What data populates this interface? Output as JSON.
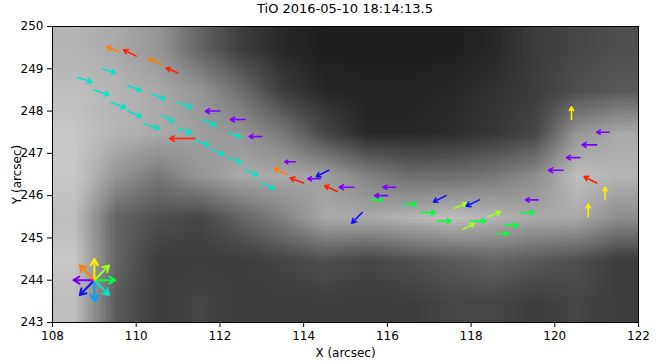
{
  "chart_data": {
    "type": "vector",
    "title": "TiO 2016-05-10 18:14:13.5",
    "x_label": "X (arcsec)",
    "y_label": "Y (arcsec)",
    "xlim": [
      108,
      122
    ],
    "ylim": [
      243,
      250
    ],
    "xticks": [
      108,
      110,
      112,
      114,
      116,
      118,
      120,
      122
    ],
    "yticks": [
      243,
      244,
      245,
      246,
      247,
      248,
      249,
      250
    ],
    "intensity": [
      [
        180,
        170,
        150,
        100,
        60,
        40,
        30,
        30,
        30,
        30,
        40,
        60,
        70,
        80
      ],
      [
        190,
        180,
        170,
        150,
        110,
        60,
        40,
        35,
        35,
        40,
        50,
        60,
        80,
        90
      ],
      [
        200,
        180,
        170,
        160,
        150,
        120,
        70,
        40,
        40,
        45,
        55,
        70,
        150,
        170
      ],
      [
        200,
        150,
        120,
        150,
        170,
        170,
        160,
        130,
        110,
        110,
        120,
        140,
        190,
        180
      ],
      [
        190,
        100,
        80,
        70,
        100,
        130,
        170,
        170,
        180,
        190,
        180,
        170,
        170,
        140
      ],
      [
        200,
        100,
        60,
        60,
        60,
        70,
        80,
        70,
        80,
        90,
        100,
        90,
        80,
        60
      ],
      [
        190,
        90,
        60,
        70,
        60,
        60,
        60,
        60,
        60,
        70,
        70,
        60,
        70,
        60
      ]
    ],
    "vectors": {
      "x": [
        108.6,
        109.0,
        109.4,
        109.8,
        110.2,
        110.6,
        111.0,
        111.4,
        111.8,
        112.2,
        112.6,
        113.0,
        109.2,
        109.8,
        110.4,
        111.0,
        111.6,
        112.2,
        110.0,
        110.6,
        111.0,
        109.6,
        112.0,
        112.6,
        113.0,
        111.4,
        113.6,
        114.0,
        114.4,
        114.8,
        115.2,
        115.6,
        116.0,
        116.4,
        116.8,
        117.2,
        117.6,
        118.0,
        118.4,
        118.8,
        117.4,
        118.2,
        115.4,
        116.2,
        119.2,
        119.6,
        120.2,
        120.6,
        121.0,
        121.3,
        120.4,
        121.0,
        120.8,
        121.2,
        118.6,
        117.8,
        114.6,
        113.8
      ],
      "y": [
        248.8,
        248.5,
        248.2,
        248.0,
        247.7,
        247.9,
        247.6,
        247.3,
        247.1,
        246.9,
        246.6,
        246.3,
        249.0,
        248.6,
        248.4,
        248.2,
        247.8,
        247.5,
        249.3,
        249.1,
        248.9,
        249.4,
        248.0,
        247.8,
        247.4,
        247.35,
        246.5,
        246.3,
        246.4,
        246.1,
        246.2,
        245.9,
        246.0,
        245.8,
        245.6,
        245.4,
        245.7,
        245.4,
        245.5,
        245.3,
        246.0,
        245.9,
        245.6,
        246.2,
        245.6,
        245.9,
        246.6,
        246.9,
        247.2,
        247.5,
        247.8,
        246.3,
        245.5,
        245.9,
        245.1,
        245.2,
        246.6,
        246.8
      ],
      "u": [
        0.35,
        0.35,
        0.35,
        0.32,
        0.35,
        0.3,
        0.33,
        0.35,
        0.3,
        0.32,
        0.3,
        0.3,
        0.3,
        0.32,
        0.3,
        0.33,
        0.3,
        0.3,
        -0.3,
        -0.3,
        -0.28,
        -0.3,
        -0.35,
        -0.35,
        -0.3,
        -0.6,
        -0.3,
        -0.32,
        -0.3,
        -0.3,
        -0.35,
        0.3,
        -0.3,
        0.3,
        0.35,
        0.32,
        0.3,
        0.35,
        0.3,
        0.32,
        -0.3,
        -0.32,
        -0.25,
        -0.3,
        0.3,
        -0.3,
        -0.35,
        -0.32,
        -0.35,
        -0.3,
        0.0,
        -0.3,
        0.0,
        0.0,
        0.3,
        0.28,
        -0.3,
        -0.25
      ],
      "v": [
        -0.12,
        -0.12,
        -0.12,
        -0.14,
        -0.12,
        -0.15,
        -0.12,
        -0.1,
        -0.14,
        -0.12,
        -0.12,
        -0.14,
        -0.1,
        -0.12,
        -0.12,
        -0.12,
        -0.14,
        -0.12,
        0.15,
        0.15,
        0.12,
        0.12,
        0.0,
        0.0,
        0.0,
        0.0,
        0.15,
        0.12,
        0.0,
        0.14,
        0.0,
        0.0,
        0.0,
        0.0,
        0.0,
        0.0,
        0.12,
        0.0,
        0.12,
        0.0,
        -0.15,
        -0.15,
        -0.25,
        0.0,
        0.0,
        0.0,
        0.0,
        0.0,
        0.0,
        0.0,
        0.3,
        0.15,
        0.3,
        0.3,
        0.0,
        0.14,
        -0.15,
        0.0
      ],
      "colors": [
        "#00e5c8",
        "#00e5c8",
        "#00e5c8",
        "#00e5c8",
        "#00e5c8",
        "#00e5c8",
        "#00e5c8",
        "#00e5c8",
        "#00e5c8",
        "#00e5c8",
        "#00e5c8",
        "#00e5c8",
        "#00e5c8",
        "#00e5c8",
        "#00e5c8",
        "#00e5c8",
        "#00e5c8",
        "#00e5c8",
        "#ff2000",
        "#ff8000",
        "#ff2000",
        "#ff8000",
        "#7a00ff",
        "#7a00ff",
        "#7a00ff",
        "#ff2000",
        "#ff8000",
        "#ff2000",
        "#7a00ff",
        "#ff2000",
        "#7a00ff",
        "#00ff40",
        "#7a00ff",
        "#00ff40",
        "#00ff40",
        "#00ff40",
        "#a0ff20",
        "#00ff40",
        "#a0ff20",
        "#00ff40",
        "#1010ff",
        "#1010ff",
        "#1010ff",
        "#7a00ff",
        "#00ff40",
        "#7a00ff",
        "#7a00ff",
        "#7a00ff",
        "#7a00ff",
        "#7a00ff",
        "#ffee00",
        "#ff2000",
        "#ffee00",
        "#ffee00",
        "#00ff40",
        "#a0ff20",
        "#1010ff",
        "#7a00ff"
      ]
    },
    "key": {
      "x": 109,
      "y": 244,
      "u": [
        -0.5,
        -0.35,
        0.0,
        0.35,
        0.5,
        0.35,
        0.0,
        -0.35
      ],
      "v": [
        0.0,
        -0.35,
        -0.5,
        -0.35,
        0.0,
        0.35,
        0.5,
        0.35
      ],
      "colors": [
        "#7a00ff",
        "#1010ff",
        "#00a0ff",
        "#00e5c8",
        "#00ff40",
        "#a0ff20",
        "#ffee00",
        "#ff8000"
      ]
    }
  }
}
